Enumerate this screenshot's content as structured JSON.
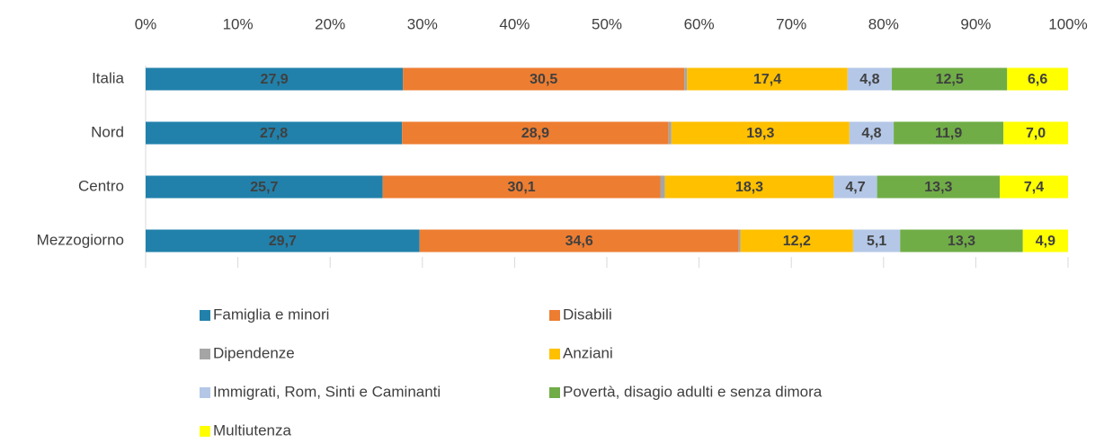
{
  "chart_data": {
    "type": "stacked_bar_horizontal",
    "categories": [
      "Italia",
      "Nord",
      "Centro",
      "Mezzogiorno"
    ],
    "series": [
      {
        "name": "Famiglia e minori",
        "color": "#2181ab",
        "values": [
          27.9,
          27.8,
          25.7,
          29.7
        ],
        "value_labels": [
          "27,9",
          "27,8",
          "25,7",
          "29,7"
        ]
      },
      {
        "name": "Disabili",
        "color": "#ed7d31",
        "values": [
          30.5,
          28.9,
          30.1,
          34.6
        ],
        "value_labels": [
          "30,5",
          "28,9",
          "30,1",
          "34,6"
        ]
      },
      {
        "name": "Dipendenze",
        "color": "#a5a5a5",
        "values": [
          0.3,
          0.3,
          0.5,
          0.2
        ]
      },
      {
        "name": "Anziani",
        "color": "#ffc000",
        "values": [
          17.4,
          19.3,
          18.3,
          12.2
        ],
        "value_labels": [
          "17,4",
          "19,3",
          "18,3",
          "12,2"
        ]
      },
      {
        "name": "Immigrati, Rom, Sinti e Caminanti",
        "color": "#b4c7e7",
        "values": [
          4.8,
          4.8,
          4.7,
          5.1
        ],
        "value_labels": [
          "4,8",
          "4,8",
          "4,7",
          "5,1"
        ]
      },
      {
        "name": "Povertà, disagio adulti e senza dimora",
        "color": "#70ad47",
        "values": [
          12.5,
          11.9,
          13.3,
          13.3
        ],
        "value_labels": [
          "12,5",
          "11,9",
          "13,3",
          "13,3"
        ]
      },
      {
        "name": "Multiutenza",
        "color": "#ffff00",
        "values": [
          6.6,
          7.0,
          7.4,
          4.9
        ],
        "value_labels": [
          "6,6",
          "7,0",
          "7,4",
          "4,9"
        ]
      }
    ],
    "xlim": [
      0,
      100
    ],
    "xticks": [
      {
        "value": 0,
        "label": "0%"
      },
      {
        "value": 10,
        "label": "10%"
      },
      {
        "value": 20,
        "label": "20%"
      },
      {
        "value": 30,
        "label": "30%"
      },
      {
        "value": 40,
        "label": "40%"
      },
      {
        "value": 50,
        "label": "50%"
      },
      {
        "value": 60,
        "label": "60%"
      },
      {
        "value": 70,
        "label": "70%"
      },
      {
        "value": 80,
        "label": "80%"
      },
      {
        "value": 90,
        "label": "90%"
      },
      {
        "value": 100,
        "label": "100%"
      }
    ],
    "legend": "bottom"
  }
}
